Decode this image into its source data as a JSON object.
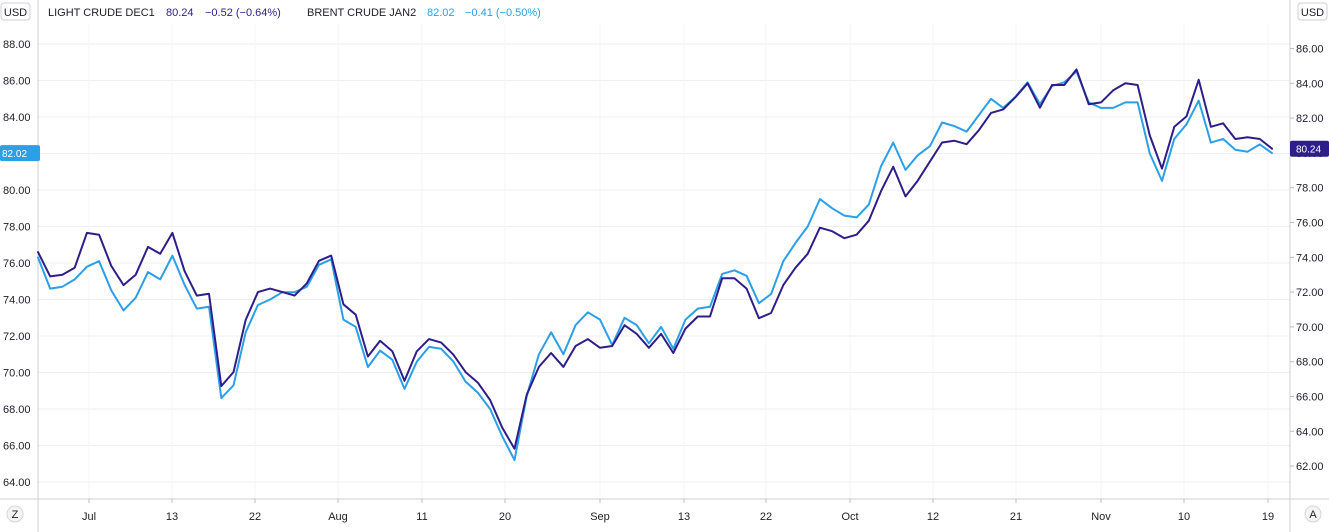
{
  "chart_data": {
    "type": "line",
    "currency_left": "USD",
    "currency_right": "USD",
    "corner_left_btn": "Z",
    "corner_right_btn": "A",
    "x_ticks": [
      "Jul",
      "13",
      "22",
      "Aug",
      "11",
      "20",
      "Sep",
      "13",
      "22",
      "Oct",
      "12",
      "21",
      "Nov",
      "10",
      "19"
    ],
    "y_left_ticks": [
      "88.00",
      "86.00",
      "84.00",
      "82.00",
      "80.00",
      "78.00",
      "76.00",
      "74.00",
      "72.00",
      "70.00",
      "68.00",
      "66.00",
      "64.00"
    ],
    "y_right_ticks": [
      "86.00",
      "84.00",
      "82.00",
      "80.00",
      "78.00",
      "76.00",
      "74.00",
      "72.00",
      "70.00",
      "68.00",
      "66.00",
      "64.00",
      "62.00"
    ],
    "ylim_left": [
      63.0,
      89.0
    ],
    "ylim_right": [
      60.7,
      87.0
    ],
    "grid": true,
    "colors": {
      "light": "#2d1e8a",
      "brent": "#2b9fe8",
      "grid": "#eeeeee",
      "axis": "#cccccc"
    },
    "legend": {
      "light_name": "LIGHT CRUDE DEC1",
      "light_price": "80.24",
      "light_change": "−0.52 (−0.64%)",
      "brent_name": "BRENT CRUDE JAN2",
      "brent_price": "82.02",
      "brent_change": "−0.41 (−0.50%)"
    },
    "last_labels": {
      "left": "82.02",
      "right": "80.24"
    },
    "series": [
      {
        "name": "BRENT CRUDE JAN2",
        "axis": "left",
        "values": [
          76.3,
          74.6,
          74.7,
          75.1,
          75.8,
          76.1,
          74.5,
          73.4,
          74.1,
          75.5,
          75.1,
          76.4,
          74.8,
          73.5,
          73.6,
          68.6,
          69.3,
          72.2,
          73.7,
          74.0,
          74.4,
          74.4,
          74.7,
          75.9,
          76.2,
          72.9,
          72.5,
          70.3,
          71.2,
          70.7,
          69.1,
          70.6,
          71.4,
          71.3,
          70.6,
          69.5,
          68.9,
          68.0,
          66.5,
          65.2,
          68.7,
          71.0,
          72.2,
          71.0,
          72.6,
          73.3,
          72.9,
          71.5,
          73.0,
          72.6,
          71.6,
          72.5,
          71.3,
          72.9,
          73.5,
          73.6,
          75.4,
          75.6,
          75.3,
          73.8,
          74.3,
          76.1,
          77.1,
          78.0,
          79.5,
          79.0,
          78.6,
          78.5,
          79.2,
          81.3,
          82.6,
          81.1,
          81.9,
          82.4,
          83.7,
          83.5,
          83.2,
          84.1,
          85.0,
          84.5,
          85.1,
          85.9,
          84.7,
          85.7,
          85.9,
          86.5,
          84.8,
          84.5,
          84.5,
          84.8,
          84.8,
          82.0,
          80.5,
          82.8,
          83.6,
          84.9,
          82.6,
          82.8,
          82.2,
          82.1,
          82.5,
          82.02
        ]
      },
      {
        "name": "LIGHT CRUDE DEC1",
        "axis": "right",
        "values": [
          74.3,
          72.9,
          73.0,
          73.4,
          75.4,
          75.3,
          73.5,
          72.4,
          73.0,
          74.6,
          74.2,
          75.4,
          73.2,
          71.8,
          71.9,
          66.6,
          67.4,
          70.4,
          72.0,
          72.2,
          72.0,
          71.8,
          72.5,
          73.8,
          74.1,
          71.3,
          70.7,
          68.3,
          69.2,
          68.6,
          66.9,
          68.6,
          69.3,
          69.1,
          68.4,
          67.4,
          66.8,
          65.8,
          64.2,
          63.0,
          66.1,
          67.7,
          68.5,
          67.7,
          68.9,
          69.3,
          68.8,
          68.9,
          70.1,
          69.6,
          68.8,
          69.6,
          68.5,
          69.9,
          70.6,
          70.6,
          72.8,
          72.8,
          72.2,
          70.5,
          70.8,
          72.4,
          73.4,
          74.2,
          75.7,
          75.5,
          75.1,
          75.3,
          76.1,
          77.8,
          79.2,
          77.5,
          78.4,
          79.5,
          80.6,
          80.7,
          80.5,
          81.3,
          82.3,
          82.5,
          83.2,
          84.0,
          82.6,
          83.9,
          83.9,
          84.8,
          82.8,
          82.9,
          83.6,
          84.0,
          83.9,
          81.0,
          79.1,
          81.5,
          82.1,
          84.2,
          81.5,
          81.7,
          80.8,
          80.9,
          80.8,
          80.24
        ]
      }
    ]
  }
}
